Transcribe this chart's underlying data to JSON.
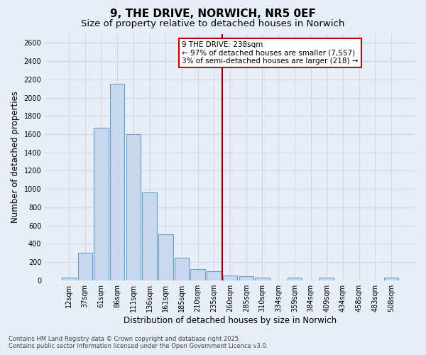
{
  "title": "9, THE DRIVE, NORWICH, NR5 0EF",
  "subtitle": "Size of property relative to detached houses in Norwich",
  "xlabel": "Distribution of detached houses by size in Norwich",
  "ylabel": "Number of detached properties",
  "footnote1": "Contains HM Land Registry data © Crown copyright and database right 2025.",
  "footnote2": "Contains public sector information licensed under the Open Government Licence v3.0.",
  "categories": [
    "12sqm",
    "37sqm",
    "61sqm",
    "86sqm",
    "111sqm",
    "136sqm",
    "161sqm",
    "185sqm",
    "210sqm",
    "235sqm",
    "260sqm",
    "285sqm",
    "310sqm",
    "334sqm",
    "359sqm",
    "384sqm",
    "409sqm",
    "434sqm",
    "458sqm",
    "483sqm",
    "508sqm"
  ],
  "values": [
    25,
    300,
    1670,
    2150,
    1600,
    960,
    505,
    245,
    120,
    100,
    50,
    45,
    30,
    0,
    25,
    0,
    25,
    0,
    0,
    0,
    25
  ],
  "bar_color": "#c8d9ee",
  "bar_edge_color": "#6b9ec8",
  "vline_x": 9.5,
  "vline_color": "#8b0000",
  "annotation_text": "9 THE DRIVE: 238sqm\n← 97% of detached houses are smaller (7,557)\n3% of semi-detached houses are larger (218) →",
  "annotation_box_color": "#ffffff",
  "annotation_box_edge_color": "#cc0000",
  "ylim": [
    0,
    2700
  ],
  "yticks": [
    0,
    200,
    400,
    600,
    800,
    1000,
    1200,
    1400,
    1600,
    1800,
    2000,
    2200,
    2400,
    2600
  ],
  "bg_color": "#e8eef8",
  "grid_color": "#d0d8e8",
  "title_fontsize": 11,
  "subtitle_fontsize": 9.5,
  "axis_fontsize": 8.5,
  "tick_fontsize": 7,
  "annot_fontsize": 7.5
}
